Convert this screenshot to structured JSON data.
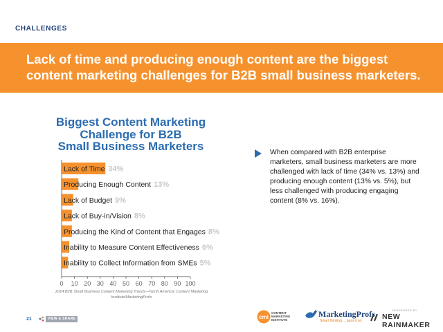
{
  "header": {
    "section": "CHALLENGES",
    "banner": "Lack of time and producing enough content are the biggest content marketing challenges for B2B small business marketers."
  },
  "colors": {
    "banner": "#f6922e",
    "bar": "#f6922e",
    "title": "#2b6cb0",
    "value_text": "#c9c9c9"
  },
  "chart_data": {
    "type": "bar",
    "orientation": "horizontal",
    "title": "Biggest Content Marketing Challenge for B2B Small Business Marketers",
    "title_lines": [
      "Biggest Content Marketing",
      "Challenge for B2B",
      "Small Business Marketers"
    ],
    "categories": [
      "Lack of Time",
      "Producing Enough Content",
      "Lack of Budget",
      "Lack of Buy-in/Vision",
      "Producing the Kind of Content that Engages",
      "Inability to Measure Content Effectiveness",
      "Inability to Collect Information from SMEs"
    ],
    "values": [
      34,
      13,
      9,
      8,
      8,
      6,
      5
    ],
    "value_labels": [
      "34%",
      "13%",
      "9%",
      "8%",
      "8%",
      "6%",
      "5%"
    ],
    "xlim": [
      0,
      100
    ],
    "xticks": [
      0,
      10,
      20,
      30,
      40,
      50,
      60,
      70,
      80,
      90,
      100
    ],
    "grid": false,
    "legend": "none"
  },
  "source": "2014 B2B Small Business Content Marketing Trends—North America: Content Marketing Institute/MarketingProfs",
  "bullet": "When compared with B2B enterprise marketers, small business marketers are more challenged with lack of time (34% vs. 13%) and producing enough content (13% vs. 5%), but less challenged with producing engaging content (8% vs. 16%).",
  "footer": {
    "page_number": "21",
    "share_label": "VIEW & SHARE",
    "cmi_text": "CONTENT MARKETING INSTITUTE",
    "cmi_mark": "cmi",
    "mp_name": "MarketingProfs",
    "mp_tagline": "Smart thinking ... pass it on.",
    "sponsor_label": "SPONSORED BY",
    "rainmaker": "NEW RAINMAKER"
  },
  "icons": {
    "bullet": "triangle-right-icon",
    "share": "share-icon",
    "bird": "bird-icon",
    "rainmaker": "slash-icon"
  }
}
